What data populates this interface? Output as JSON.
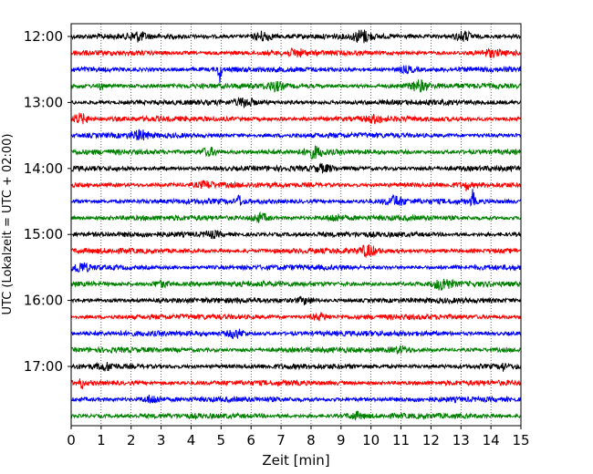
{
  "chart_data": {
    "type": "line",
    "title": "",
    "xlabel": "Zeit  [min]",
    "ylabel": "UTC (Lokalzeit = UTC + 02:00)",
    "xlim": [
      0,
      15
    ],
    "x_ticks": [
      0,
      1,
      2,
      3,
      4,
      5,
      6,
      7,
      8,
      9,
      10,
      11,
      12,
      13,
      14,
      15
    ],
    "y_tick_labels": [
      "12:00",
      "13:00",
      "14:00",
      "15:00",
      "16:00",
      "17:00"
    ],
    "y_tick_traces": [
      0,
      4,
      8,
      12,
      16,
      20
    ],
    "trace_interval_minutes": 15,
    "vertical_grid": true,
    "grid_style": "dotted",
    "trace_colors": [
      "#000000",
      "#ff0000",
      "#0000ff",
      "#008000"
    ],
    "traces": [
      {
        "start": "12:00",
        "color": "#000000",
        "events": [
          {
            "t": 2.2,
            "a": 4
          },
          {
            "t": 6.4,
            "a": 5
          },
          {
            "t": 9.7,
            "a": 6
          },
          {
            "t": 13.1,
            "a": 5
          }
        ]
      },
      {
        "start": "12:15",
        "color": "#ff0000",
        "events": [
          {
            "t": 7.5,
            "a": 3
          },
          {
            "t": 14.0,
            "a": 3
          }
        ]
      },
      {
        "start": "12:30",
        "color": "#0000ff",
        "events": [
          {
            "t": 4.95,
            "a": 14,
            "spike": true
          },
          {
            "t": 11.2,
            "a": 3
          }
        ]
      },
      {
        "start": "12:45",
        "color": "#008000",
        "events": [
          {
            "t": 1.0,
            "a": 4,
            "spike": true
          },
          {
            "t": 6.8,
            "a": 4
          },
          {
            "t": 11.6,
            "a": 5
          }
        ]
      },
      {
        "start": "13:00",
        "color": "#000000",
        "events": [
          {
            "t": 5.8,
            "a": 4
          }
        ]
      },
      {
        "start": "13:15",
        "color": "#ff0000",
        "events": [
          {
            "t": 0.3,
            "a": 5
          },
          {
            "t": 10.1,
            "a": 3
          }
        ]
      },
      {
        "start": "13:30",
        "color": "#0000ff",
        "events": [
          {
            "t": 2.3,
            "a": 4
          }
        ]
      },
      {
        "start": "13:45",
        "color": "#008000",
        "events": [
          {
            "t": 4.6,
            "a": 4
          },
          {
            "t": 8.1,
            "a": 5
          }
        ]
      },
      {
        "start": "14:00",
        "color": "#000000",
        "events": [
          {
            "t": 8.4,
            "a": 3
          }
        ]
      },
      {
        "start": "14:15",
        "color": "#ff0000",
        "events": [
          {
            "t": 4.5,
            "a": 3
          },
          {
            "t": 13.2,
            "a": 5,
            "spike": true
          }
        ]
      },
      {
        "start": "14:30",
        "color": "#0000ff",
        "events": [
          {
            "t": 5.6,
            "a": 7,
            "spike": true
          },
          {
            "t": 10.8,
            "a": 5
          },
          {
            "t": 13.4,
            "a": 12,
            "spike": true
          }
        ]
      },
      {
        "start": "14:45",
        "color": "#008000",
        "events": [
          {
            "t": 6.3,
            "a": 4
          },
          {
            "t": 8.8,
            "a": 3
          }
        ]
      },
      {
        "start": "15:00",
        "color": "#000000",
        "events": [
          {
            "t": 4.7,
            "a": 3
          }
        ]
      },
      {
        "start": "15:15",
        "color": "#ff0000",
        "events": [
          {
            "t": 9.9,
            "a": 5
          }
        ]
      },
      {
        "start": "15:30",
        "color": "#0000ff",
        "events": [
          {
            "t": 0.3,
            "a": 4
          }
        ]
      },
      {
        "start": "15:45",
        "color": "#008000",
        "events": [
          {
            "t": 3.0,
            "a": 3
          },
          {
            "t": 12.4,
            "a": 6
          }
        ]
      },
      {
        "start": "16:00",
        "color": "#000000",
        "events": [
          {
            "t": 7.8,
            "a": 3
          }
        ]
      },
      {
        "start": "16:15",
        "color": "#ff0000",
        "events": [
          {
            "t": 8.3,
            "a": 3
          }
        ]
      },
      {
        "start": "16:30",
        "color": "#0000ff",
        "events": [
          {
            "t": 5.5,
            "a": 4
          }
        ]
      },
      {
        "start": "16:45",
        "color": "#008000",
        "events": [
          {
            "t": 11.0,
            "a": 3
          }
        ]
      },
      {
        "start": "17:00",
        "color": "#000000",
        "events": [
          {
            "t": 1.2,
            "a": 3
          },
          {
            "t": 14.4,
            "a": 4,
            "spike": true
          }
        ]
      },
      {
        "start": "17:15",
        "color": "#ff0000",
        "events": [
          {
            "t": 0.35,
            "a": 6,
            "spike": true
          }
        ]
      },
      {
        "start": "17:30",
        "color": "#0000ff",
        "events": [
          {
            "t": 2.7,
            "a": 4
          }
        ]
      },
      {
        "start": "17:45",
        "color": "#008000",
        "events": [
          {
            "t": 9.5,
            "a": 3
          }
        ]
      }
    ]
  }
}
